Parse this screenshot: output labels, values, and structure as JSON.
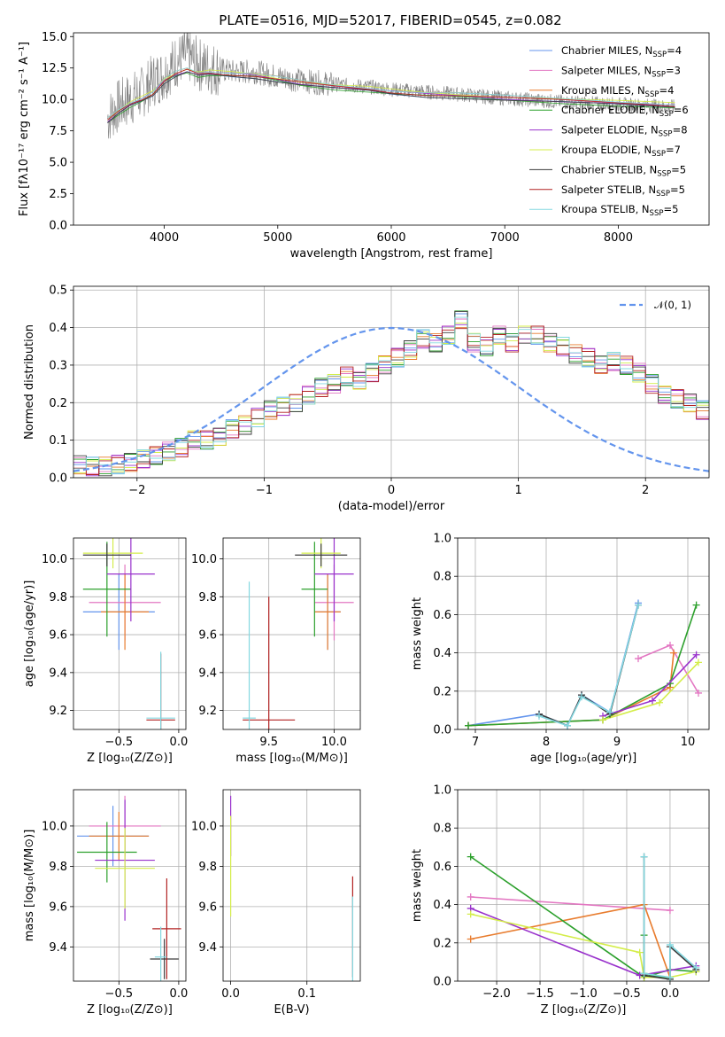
{
  "colors": [
    "#6495ed",
    "#e377c2",
    "#e87c2e",
    "#2ca02c",
    "#9932cc",
    "#d4ed4a",
    "#3c3c3c",
    "#b22222",
    "#84d8e0"
  ],
  "chart_data": [
    {
      "id": "spectrum",
      "type": "line",
      "title": "PLATE=0516, MJD=52017, FIBERID=0545, z=0.082",
      "xlabel": "wavelength [Angstrom, rest frame]",
      "ylabel": "Flux [fλ10⁻¹⁷ erg cm⁻² s⁻¹ A⁻¹]",
      "xlim": [
        3200,
        8800
      ],
      "ylim": [
        0,
        15.3
      ],
      "xticks": [
        4000,
        5000,
        6000,
        7000,
        8000
      ],
      "yticks": [
        0.0,
        2.5,
        5.0,
        7.5,
        10.0,
        12.5,
        15.0
      ],
      "legend_position": "top-right",
      "grid": false,
      "data_color": "#808080",
      "data_x": [
        3500,
        3600,
        3700,
        3800,
        3900,
        4000,
        4100,
        4200,
        4300,
        4400,
        4600,
        4800,
        5000,
        5200,
        5500,
        5800,
        6000,
        6300,
        6600,
        7000,
        7500,
        8000,
        8500
      ],
      "data_y": [
        8.5,
        9.5,
        10.0,
        10.5,
        11.5,
        12.0,
        13.0,
        13.5,
        12.8,
        12.5,
        12.2,
        12.2,
        11.8,
        11.5,
        11.2,
        11.0,
        10.8,
        10.6,
        10.4,
        10.1,
        9.8,
        9.6,
        9.4
      ],
      "model_x": [
        3500,
        3600,
        3700,
        3800,
        3900,
        4000,
        4100,
        4200,
        4300,
        4400,
        4600,
        4800,
        5000,
        5200,
        5500,
        5800,
        6000,
        6300,
        6600,
        7000,
        7500,
        8000,
        8500
      ],
      "model_y": [
        8.3,
        9.0,
        9.6,
        10.0,
        10.5,
        11.5,
        12.0,
        12.3,
        12.0,
        12.1,
        12.0,
        11.9,
        11.6,
        11.3,
        11.0,
        10.8,
        10.6,
        10.4,
        10.3,
        10.1,
        9.9,
        9.7,
        9.5
      ],
      "series": [
        {
          "name": "Chabrier MILES, N_SSP=4",
          "label_main": "Chabrier MILES, N",
          "label_sub": "SSP",
          "label_end": "=4"
        },
        {
          "name": "Salpeter MILES, N_SSP=3",
          "label_main": "Salpeter MILES, N",
          "label_sub": "SSP",
          "label_end": "=3"
        },
        {
          "name": "Kroupa MILES, N_SSP=4",
          "label_main": "Kroupa MILES, N",
          "label_sub": "SSP",
          "label_end": "=4"
        },
        {
          "name": "Chabrier ELODIE, N_SSP=6",
          "label_main": "Chabrier ELODIE, N",
          "label_sub": "SSP",
          "label_end": "=6"
        },
        {
          "name": "Salpeter ELODIE, N_SSP=8",
          "label_main": "Salpeter ELODIE, N",
          "label_sub": "SSP",
          "label_end": "=8"
        },
        {
          "name": "Kroupa ELODIE, N_SSP=7",
          "label_main": "Kroupa ELODIE, N",
          "label_sub": "SSP",
          "label_end": "=7"
        },
        {
          "name": "Chabrier STELIB, N_SSP=5",
          "label_main": "Chabrier STELIB, N",
          "label_sub": "SSP",
          "label_end": "=5"
        },
        {
          "name": "Salpeter STELIB, N_SSP=5",
          "label_main": "Salpeter STELIB, N",
          "label_sub": "SSP",
          "label_end": "=5"
        },
        {
          "name": "Kroupa STELIB, N_SSP=5",
          "label_main": "Kroupa STELIB, N",
          "label_sub": "SSP",
          "label_end": "=5"
        }
      ]
    },
    {
      "id": "residuals",
      "type": "line",
      "xlabel": "(data-model)/error",
      "ylabel": "Normed distribution",
      "xlim": [
        -2.5,
        2.5
      ],
      "ylim": [
        0,
        0.51
      ],
      "xticks": [
        -2,
        -1,
        0,
        1,
        2
      ],
      "yticks": [
        0.0,
        0.1,
        0.2,
        0.3,
        0.4,
        0.5
      ],
      "grid": true,
      "legend": "𝒩(0, 1)",
      "legend_position": "top-right",
      "bin_width": 0.1,
      "bin_start": -2.5,
      "hist_values": [
        0.035,
        0.03,
        0.03,
        0.035,
        0.04,
        0.05,
        0.06,
        0.07,
        0.08,
        0.1,
        0.1,
        0.11,
        0.13,
        0.14,
        0.16,
        0.18,
        0.19,
        0.2,
        0.22,
        0.24,
        0.25,
        0.27,
        0.26,
        0.28,
        0.3,
        0.32,
        0.34,
        0.37,
        0.36,
        0.38,
        0.42,
        0.36,
        0.35,
        0.38,
        0.36,
        0.38,
        0.38,
        0.36,
        0.35,
        0.33,
        0.32,
        0.3,
        0.31,
        0.3,
        0.28,
        0.25,
        0.22,
        0.21,
        0.2,
        0.18
      ]
    },
    {
      "id": "age-vs-z",
      "type": "scatter",
      "xlabel": "Z [log₁₀(Z/Z⊙)]",
      "ylabel": "age  [log₁₀(age/yr)]",
      "xlim": [
        -0.88,
        0.06
      ],
      "ylim": [
        9.1,
        10.11
      ],
      "xticks": [
        -0.5,
        0.0
      ],
      "yticks": [
        9.2,
        9.4,
        9.6,
        9.8,
        10.0
      ],
      "grid": true,
      "points": [
        {
          "x": -0.5,
          "y": 9.72,
          "xerr": 0.3,
          "yerr": 0.2,
          "c": 0
        },
        {
          "x": -0.45,
          "y": 9.77,
          "xerr": 0.3,
          "yerr": 0.2,
          "c": 1
        },
        {
          "x": -0.45,
          "y": 9.72,
          "xerr": 0.2,
          "yerr": 0.2,
          "c": 2
        },
        {
          "x": -0.6,
          "y": 9.84,
          "xerr": 0.2,
          "yerr": 0.25,
          "c": 3
        },
        {
          "x": -0.4,
          "y": 9.92,
          "xerr": 0.2,
          "yerr": 0.25,
          "c": 4
        },
        {
          "x": -0.55,
          "y": 10.03,
          "xerr": 0.25,
          "yerr": 0.08,
          "c": 5
        },
        {
          "x": -0.6,
          "y": 10.02,
          "xerr": 0.2,
          "yerr": 0.06,
          "c": 6
        },
        {
          "x": -0.15,
          "y": 9.15,
          "xerr": 0.12,
          "yerr": 0.35,
          "c": 7
        },
        {
          "x": -0.15,
          "y": 9.16,
          "xerr": 0.12,
          "yerr": 0.35,
          "c": 8
        }
      ]
    },
    {
      "id": "age-vs-mass",
      "type": "scatter",
      "xlabel": "mass [log₁₀(M/M⊙)]",
      "xlim": [
        9.15,
        10.2
      ],
      "ylim": [
        9.1,
        10.11
      ],
      "xticks": [
        9.5,
        10.0
      ],
      "yticks": [
        9.2,
        9.4,
        9.6,
        9.8,
        10.0
      ],
      "grid": true,
      "points": [
        {
          "x": 9.95,
          "y": 9.72,
          "xerr": 0.1,
          "yerr": 0.2,
          "c": 0
        },
        {
          "x": 10.0,
          "y": 9.77,
          "xerr": 0.15,
          "yerr": 0.2,
          "c": 1
        },
        {
          "x": 9.95,
          "y": 9.72,
          "xerr": 0.1,
          "yerr": 0.2,
          "c": 2
        },
        {
          "x": 9.85,
          "y": 9.84,
          "xerr": 0.1,
          "yerr": 0.25,
          "c": 3
        },
        {
          "x": 10.0,
          "y": 9.92,
          "xerr": 0.15,
          "yerr": 0.25,
          "c": 4
        },
        {
          "x": 9.9,
          "y": 10.03,
          "xerr": 0.15,
          "yerr": 0.08,
          "c": 5
        },
        {
          "x": 9.9,
          "y": 10.02,
          "xerr": 0.2,
          "yerr": 0.06,
          "c": 6
        },
        {
          "x": 9.5,
          "y": 9.15,
          "xerr": 0.2,
          "yerr": 0.65,
          "c": 7
        },
        {
          "x": 9.35,
          "y": 9.16,
          "xerr": 0.05,
          "yerr": 0.72,
          "c": 8
        }
      ]
    },
    {
      "id": "weight-vs-age",
      "type": "line",
      "xlabel": "age  [log₁₀(age/yr)]",
      "ylabel": "mass weight",
      "xlim": [
        6.75,
        10.3
      ],
      "ylim": [
        0,
        1.0
      ],
      "xticks": [
        7,
        8,
        9,
        10
      ],
      "yticks": [
        0.0,
        0.2,
        0.4,
        0.6,
        0.8,
        1.0
      ],
      "grid": true,
      "series": [
        {
          "c": 0,
          "x": [
            6.9,
            7.9,
            8.3,
            8.5,
            8.9,
            9.3
          ],
          "y": [
            0.02,
            0.08,
            0.02,
            0.18,
            0.09,
            0.66
          ]
        },
        {
          "c": 1,
          "x": [
            9.3,
            9.75,
            10.15
          ],
          "y": [
            0.37,
            0.44,
            0.19
          ]
        },
        {
          "c": 2,
          "x": [
            6.9,
            8.8,
            9.75,
            9.8
          ],
          "y": [
            0.02,
            0.05,
            0.22,
            0.4
          ]
        },
        {
          "c": 3,
          "x": [
            6.9,
            8.8,
            9.75,
            10.12
          ],
          "y": [
            0.02,
            0.05,
            0.24,
            0.65
          ]
        },
        {
          "c": 4,
          "x": [
            8.8,
            9.5,
            10.12
          ],
          "y": [
            0.07,
            0.15,
            0.39
          ]
        },
        {
          "c": 5,
          "x": [
            8.8,
            9.6,
            10.15
          ],
          "y": [
            0.05,
            0.14,
            0.35
          ]
        },
        {
          "c": 6,
          "x": [
            7.9,
            8.3,
            8.5,
            8.9,
            9.3
          ],
          "y": [
            0.08,
            0.02,
            0.18,
            0.08,
            0.65
          ]
        },
        {
          "c": 8,
          "x": [
            7.9,
            8.3,
            8.5,
            8.9,
            9.3
          ],
          "y": [
            0.07,
            0.02,
            0.17,
            0.09,
            0.65
          ]
        }
      ]
    },
    {
      "id": "mass-vs-z",
      "type": "scatter",
      "xlabel": "Z [log₁₀(Z/Z⊙)]",
      "ylabel": "mass [log₁₀(M/M⊙)]",
      "xlim": [
        -0.88,
        0.06
      ],
      "ylim": [
        9.23,
        10.18
      ],
      "xticks": [
        -0.5,
        0.0
      ],
      "yticks": [
        9.4,
        9.6,
        9.8,
        10.0
      ],
      "grid": true,
      "points": [
        {
          "x": -0.55,
          "y": 9.95,
          "xerr": 0.3,
          "yerr": 0.15,
          "c": 0
        },
        {
          "x": -0.45,
          "y": 10.0,
          "xerr": 0.3,
          "yerr": 0.15,
          "c": 1
        },
        {
          "x": -0.5,
          "y": 9.95,
          "xerr": 0.25,
          "yerr": 0.12,
          "c": 2
        },
        {
          "x": -0.6,
          "y": 9.87,
          "xerr": 0.25,
          "yerr": 0.15,
          "c": 3
        },
        {
          "x": -0.45,
          "y": 9.83,
          "xerr": 0.25,
          "yerr": 0.3,
          "c": 4
        },
        {
          "x": -0.45,
          "y": 9.79,
          "xerr": 0.25,
          "yerr": 0.2,
          "c": 5
        },
        {
          "x": -0.12,
          "y": 9.34,
          "xerr": 0.12,
          "yerr": 0.1,
          "c": 6
        },
        {
          "x": -0.1,
          "y": 9.49,
          "xerr": 0.12,
          "yerr": 0.25,
          "c": 7
        },
        {
          "x": -0.15,
          "y": 9.35,
          "xerr": 0.05,
          "yerr": 0.15,
          "c": 8
        }
      ]
    },
    {
      "id": "mass-vs-ebv",
      "type": "scatter",
      "xlabel": "E(B-V)",
      "xlim": [
        -0.01,
        0.17
      ],
      "ylim": [
        9.23,
        10.18
      ],
      "xticks": [
        0.0,
        0.1
      ],
      "yticks": [
        9.4,
        9.6,
        9.8,
        10.0
      ],
      "grid": true,
      "points": [
        {
          "x": 0.0,
          "y": 10.0,
          "xerr": 0.0,
          "yerr": 0.15,
          "c": 4
        },
        {
          "x": 0.0,
          "y": 9.8,
          "xerr": 0.0,
          "yerr": 0.25,
          "c": 5
        },
        {
          "x": 0.16,
          "y": 9.5,
          "xerr": 0.0,
          "yerr": 0.25,
          "c": 7
        },
        {
          "x": 0.16,
          "y": 9.4,
          "xerr": 0.0,
          "yerr": 0.25,
          "c": 8
        }
      ]
    },
    {
      "id": "weight-vs-z",
      "type": "line",
      "xlabel": "Z [log₁₀(Z/Z⊙)]",
      "ylabel": "mass weight",
      "xlim": [
        -2.45,
        0.45
      ],
      "ylim": [
        0,
        1.0
      ],
      "xticks": [
        -2.0,
        -1.5,
        -1.0,
        -0.5,
        0.0
      ],
      "yticks": [
        0.0,
        0.2,
        0.4,
        0.6,
        0.8,
        1.0
      ],
      "grid": true,
      "series": [
        {
          "c": 1,
          "x": [
            -2.3,
            0.0
          ],
          "y": [
            0.44,
            0.37
          ]
        },
        {
          "c": 2,
          "x": [
            -2.3,
            -0.3,
            0.0
          ],
          "y": [
            0.22,
            0.4,
            0.02
          ]
        },
        {
          "c": 3,
          "x": [
            -2.3,
            -0.3,
            0.0,
            0.3
          ],
          "y": [
            0.65,
            0.02,
            0.06,
            0.05
          ]
        },
        {
          "c": 4,
          "x": [
            -2.3,
            -0.35,
            0.3
          ],
          "y": [
            0.38,
            0.03,
            0.08
          ]
        },
        {
          "c": 5,
          "x": [
            -2.3,
            -0.35,
            -0.3,
            0.0,
            0.3
          ],
          "y": [
            0.35,
            0.15,
            0.02,
            0.02,
            0.05
          ]
        },
        {
          "c": 3,
          "x": [
            -0.3,
            -0.3,
            0.0
          ],
          "y": [
            0.24,
            0.04,
            0.01
          ]
        },
        {
          "c": 6,
          "x": [
            -0.3,
            -0.3,
            0.0,
            0.0,
            0.3
          ],
          "y": [
            0.65,
            0.03,
            0.01,
            0.18,
            0.06
          ]
        },
        {
          "c": 8,
          "x": [
            -0.3,
            -0.3,
            0.0,
            0.0,
            0.3
          ],
          "y": [
            0.65,
            0.04,
            0.02,
            0.19,
            0.07
          ]
        }
      ]
    }
  ]
}
